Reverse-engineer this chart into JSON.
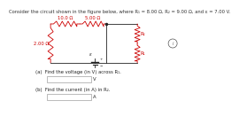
{
  "title_text": "Consider the circuit shown in the figure below, where R₁ = 8.00 Ω, R₂ = 9.00 Ω, and ε = 7.00 V.",
  "title_fontsize": 3.8,
  "title_color": "#333333",
  "resistor_color": "#cc0000",
  "line_color": "#222222",
  "label_color": "#cc0000",
  "label_fontsize": 3.8,
  "question_fontsize": 3.8,
  "question_color": "#222222",
  "circuit": {
    "top_left_resistor": "10.0 Ω",
    "mid_left_resistor": "5.00 Ω",
    "left_resistor": "2.00 Ω",
    "top_right_resistor": "R₂",
    "bot_right_resistor": "R₁",
    "battery_label": "ε"
  },
  "qa": [
    "(a)  Find the voltage (in V) across R₁.",
    "(b)  Find the current (in A) in R₂."
  ],
  "units": [
    "V",
    "A"
  ],
  "circle_label": "i"
}
